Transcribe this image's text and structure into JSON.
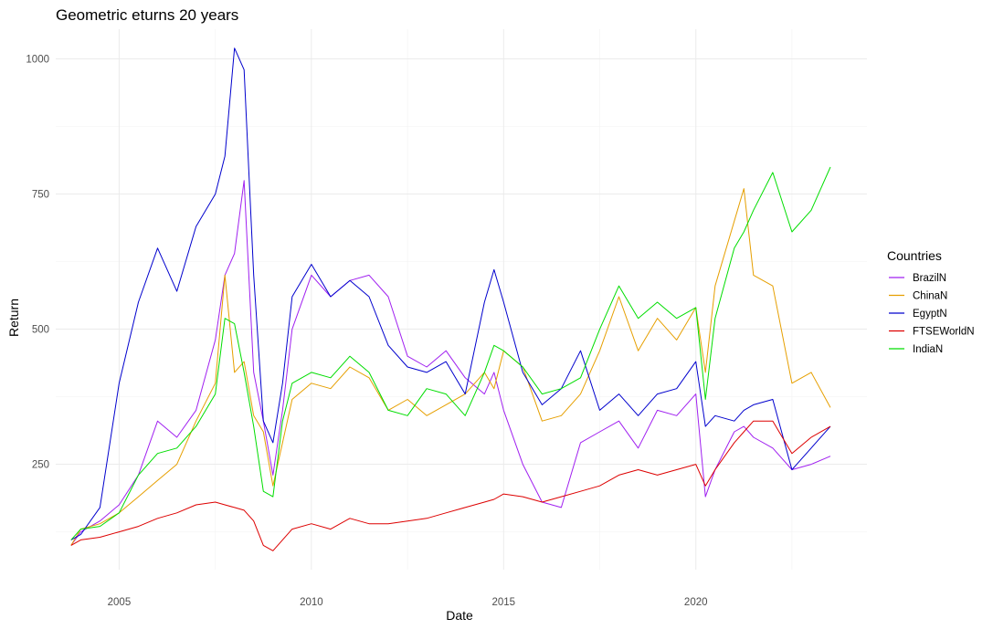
{
  "chart_data": {
    "type": "line",
    "title": "Geometric eturns 20 years",
    "xlabel": "Date",
    "ylabel": "Return",
    "x_ticks": [
      "2005",
      "2010",
      "2015",
      "2020"
    ],
    "y_ticks": [
      "250",
      "500",
      "750",
      "1000"
    ],
    "xlim": [
      2003.35,
      2024.45
    ],
    "ylim": [
      55,
      1055
    ],
    "grid": true,
    "legend": {
      "title": "Countries",
      "placement": "right"
    },
    "x": [
      2003.75,
      2004.0,
      2004.5,
      2005.0,
      2005.5,
      2006.0,
      2006.5,
      2007.0,
      2007.5,
      2007.75,
      2008.0,
      2008.25,
      2008.5,
      2008.75,
      2009.0,
      2009.25,
      2009.5,
      2010.0,
      2010.5,
      2011.0,
      2011.5,
      2012.0,
      2012.5,
      2013.0,
      2013.5,
      2014.0,
      2014.5,
      2014.75,
      2015.0,
      2015.5,
      2016.0,
      2016.5,
      2017.0,
      2017.5,
      2018.0,
      2018.5,
      2019.0,
      2019.5,
      2020.0,
      2020.25,
      2020.5,
      2021.0,
      2021.25,
      2021.5,
      2022.0,
      2022.5,
      2023.0,
      2023.5
    ],
    "series": [
      {
        "name": "BrazilN",
        "color": "#a020f0",
        "values": [
          100,
          125,
          145,
          175,
          230,
          330,
          300,
          350,
          480,
          600,
          640,
          775,
          420,
          330,
          230,
          350,
          500,
          600,
          560,
          590,
          600,
          560,
          450,
          430,
          460,
          410,
          380,
          420,
          350,
          250,
          180,
          170,
          290,
          310,
          330,
          280,
          350,
          340,
          380,
          190,
          240,
          310,
          320,
          300,
          280,
          240,
          250,
          265
        ]
      },
      {
        "name": "ChinaN",
        "color": "#e69f00",
        "values": [
          100,
          130,
          140,
          160,
          190,
          220,
          250,
          330,
          400,
          600,
          420,
          440,
          340,
          310,
          210,
          290,
          370,
          400,
          390,
          430,
          410,
          350,
          370,
          340,
          360,
          380,
          420,
          390,
          460,
          430,
          330,
          340,
          380,
          460,
          560,
          460,
          520,
          480,
          540,
          420,
          580,
          700,
          760,
          600,
          580,
          400,
          420,
          355
        ]
      },
      {
        "name": "EgyptN",
        "color": "#0000cd",
        "values": [
          110,
          120,
          170,
          400,
          550,
          650,
          570,
          690,
          750,
          820,
          1020,
          980,
          600,
          330,
          290,
          400,
          560,
          620,
          560,
          590,
          560,
          470,
          430,
          420,
          440,
          380,
          550,
          610,
          550,
          420,
          360,
          390,
          460,
          350,
          380,
          340,
          380,
          390,
          440,
          320,
          340,
          330,
          350,
          360,
          370,
          240,
          280,
          320
        ]
      },
      {
        "name": "FTSEWorldN",
        "color": "#dd0000",
        "values": [
          100,
          110,
          115,
          125,
          135,
          150,
          160,
          175,
          180,
          175,
          170,
          165,
          145,
          100,
          90,
          110,
          130,
          140,
          130,
          150,
          140,
          140,
          145,
          150,
          160,
          170,
          180,
          185,
          195,
          190,
          180,
          190,
          200,
          210,
          230,
          240,
          230,
          240,
          250,
          210,
          240,
          290,
          310,
          330,
          330,
          270,
          300,
          320
        ]
      },
      {
        "name": "IndiaN",
        "color": "#00dd00",
        "values": [
          110,
          130,
          135,
          160,
          230,
          270,
          280,
          320,
          380,
          520,
          510,
          420,
          320,
          200,
          190,
          330,
          400,
          420,
          410,
          450,
          420,
          350,
          340,
          390,
          380,
          340,
          420,
          470,
          460,
          430,
          380,
          390,
          410,
          500,
          580,
          520,
          550,
          520,
          540,
          370,
          520,
          650,
          680,
          720,
          790,
          680,
          720,
          800
        ]
      }
    ]
  }
}
